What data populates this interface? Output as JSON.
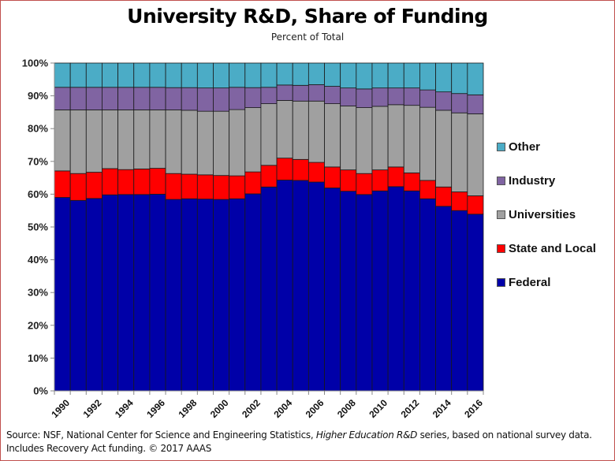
{
  "chart_data": {
    "type": "bar",
    "stacked": true,
    "title": "University R&D, Share of Funding",
    "subtitle": "Percent of Total",
    "xlabel": "",
    "ylabel": "",
    "ylim": [
      0,
      100
    ],
    "yticks": [
      "0%",
      "10%",
      "20%",
      "30%",
      "40%",
      "50%",
      "60%",
      "70%",
      "80%",
      "90%",
      "100%"
    ],
    "categories": [
      1990,
      1991,
      1992,
      1993,
      1994,
      1995,
      1996,
      1997,
      1998,
      1999,
      2000,
      2001,
      2002,
      2003,
      2004,
      2005,
      2006,
      2007,
      2008,
      2009,
      2010,
      2011,
      2012,
      2013,
      2014,
      2015,
      2016
    ],
    "xtick_labels": [
      "1990",
      "1992",
      "1994",
      "1996",
      "1998",
      "2000",
      "2002",
      "2004",
      "2006",
      "2008",
      "2010",
      "2012",
      "2014",
      "2016"
    ],
    "series": [
      {
        "name": "Federal",
        "color": "#0000a8",
        "values": [
          59.0,
          58.1,
          58.7,
          59.8,
          59.9,
          59.9,
          60.0,
          58.4,
          58.6,
          58.5,
          58.4,
          58.6,
          60.1,
          62.2,
          64.3,
          64.2,
          63.7,
          61.9,
          60.9,
          59.9,
          61.0,
          62.3,
          61.0,
          58.6,
          56.3,
          55.0,
          53.9
        ]
      },
      {
        "name": "State and Local",
        "color": "#ff0000",
        "values": [
          8.1,
          8.2,
          8.0,
          8.0,
          7.6,
          7.8,
          7.9,
          7.9,
          7.5,
          7.4,
          7.3,
          7.0,
          6.7,
          6.6,
          6.7,
          6.4,
          6.0,
          6.4,
          6.5,
          6.4,
          6.4,
          6.0,
          5.5,
          5.6,
          5.9,
          5.7,
          5.6
        ]
      },
      {
        "name": "Universities",
        "color": "#a0a0a0",
        "values": [
          18.6,
          19.4,
          19.0,
          17.9,
          18.2,
          18.0,
          17.8,
          19.4,
          19.5,
          19.4,
          19.6,
          20.2,
          19.6,
          18.8,
          17.6,
          17.8,
          18.7,
          19.3,
          19.5,
          20.1,
          19.4,
          19.0,
          20.6,
          22.3,
          23.4,
          24.1,
          25.0
        ]
      },
      {
        "name": "Industry",
        "color": "#8064a2",
        "values": [
          6.9,
          6.9,
          6.9,
          6.9,
          6.9,
          6.9,
          6.9,
          6.8,
          6.9,
          7.1,
          7.1,
          6.8,
          6.1,
          5.0,
          4.7,
          4.8,
          5.0,
          5.3,
          5.5,
          5.7,
          5.6,
          5.1,
          5.3,
          5.3,
          5.6,
          5.9,
          5.8
        ]
      },
      {
        "name": "Other",
        "color": "#4bacc6",
        "values": [
          7.4,
          7.4,
          7.4,
          7.4,
          7.4,
          7.4,
          7.4,
          7.5,
          7.5,
          7.6,
          7.6,
          7.4,
          7.5,
          7.4,
          6.7,
          6.8,
          6.6,
          7.1,
          7.6,
          7.9,
          7.6,
          7.6,
          7.6,
          8.2,
          8.8,
          9.3,
          9.7
        ]
      }
    ],
    "legend": {
      "placement": "right",
      "order": [
        "Other",
        "Industry",
        "Universities",
        "State and Local",
        "Federal"
      ]
    },
    "grid": false
  },
  "legend_labels": [
    "Other",
    "Industry",
    "Universities",
    "State and Local",
    "Federal"
  ],
  "legend_colors": [
    "#4bacc6",
    "#8064a2",
    "#a0a0a0",
    "#ff0000",
    "#0000a8"
  ],
  "source": {
    "prefix": "Source: NSF, National Center for Science and Engineering Statistics, ",
    "italic": "Higher Education R&D",
    "suffix": " series, based on national survey data.",
    "line2": "Includes Recovery Act funding. © 2017 AAAS"
  }
}
